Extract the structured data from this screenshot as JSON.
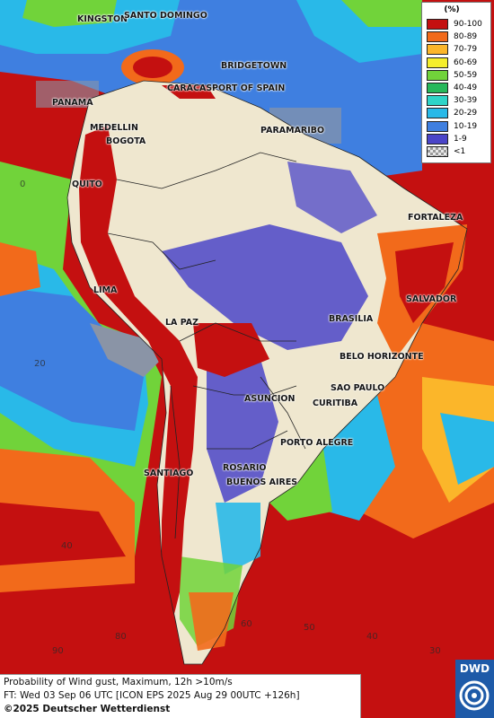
{
  "legend": {
    "title": "(%)",
    "items": [
      {
        "label": "90-100",
        "color": "#c41010"
      },
      {
        "label": "80-89",
        "color": "#f26a1b"
      },
      {
        "label": "70-79",
        "color": "#fbb62a"
      },
      {
        "label": "60-69",
        "color": "#f5ee2c"
      },
      {
        "label": "50-59",
        "color": "#71d33a"
      },
      {
        "label": "40-49",
        "color": "#27b85b"
      },
      {
        "label": "30-39",
        "color": "#2ed4c8"
      },
      {
        "label": "20-29",
        "color": "#29b9e8"
      },
      {
        "label": "10-19",
        "color": "#3f7fe0"
      },
      {
        "label": "1-9",
        "color": "#4b45c8"
      },
      {
        "label": "<1",
        "color": "checker"
      }
    ]
  },
  "cities": [
    {
      "name": "KINGSTON"
    },
    {
      "name": "SANTO DOMINGO"
    },
    {
      "name": "BRIDGETOWN"
    },
    {
      "name": "CARACAS"
    },
    {
      "name": "PORT OF SPAIN"
    },
    {
      "name": "PANAMA"
    },
    {
      "name": "MEDELLIN"
    },
    {
      "name": "BOGOTA"
    },
    {
      "name": "PARAMARIBO"
    },
    {
      "name": "QUITO"
    },
    {
      "name": "FORTALEZA"
    },
    {
      "name": "LIMA"
    },
    {
      "name": "SALVADOR"
    },
    {
      "name": "LA PAZ"
    },
    {
      "name": "BRASILIA"
    },
    {
      "name": "BELO HORIZONTE"
    },
    {
      "name": "SAO PAULO"
    },
    {
      "name": "ASUNCION"
    },
    {
      "name": "CURITIBA"
    },
    {
      "name": "PORTO ALEGRE"
    },
    {
      "name": "SANTIAGO"
    },
    {
      "name": "ROSARIO"
    },
    {
      "name": "BUENOS AIRES"
    }
  ],
  "grid_labels": [
    "0",
    "20",
    "40",
    "90",
    "80",
    "60",
    "50",
    "40",
    "30"
  ],
  "footer": {
    "line1": "Probability of Wind gust, Maximum, 12h >10m/s",
    "line2": "FT: Wed 03 Sep 06 UTC [ICON EPS 2025 Aug 29 00UTC +126h]",
    "line3": "©2025 Deutscher Wetterdienst"
  },
  "logo": {
    "text": "DWD"
  },
  "colors": {
    "ocean_gray": "#8a94a6",
    "land_beige": "#efe7cf",
    "border_line": "#222222"
  }
}
